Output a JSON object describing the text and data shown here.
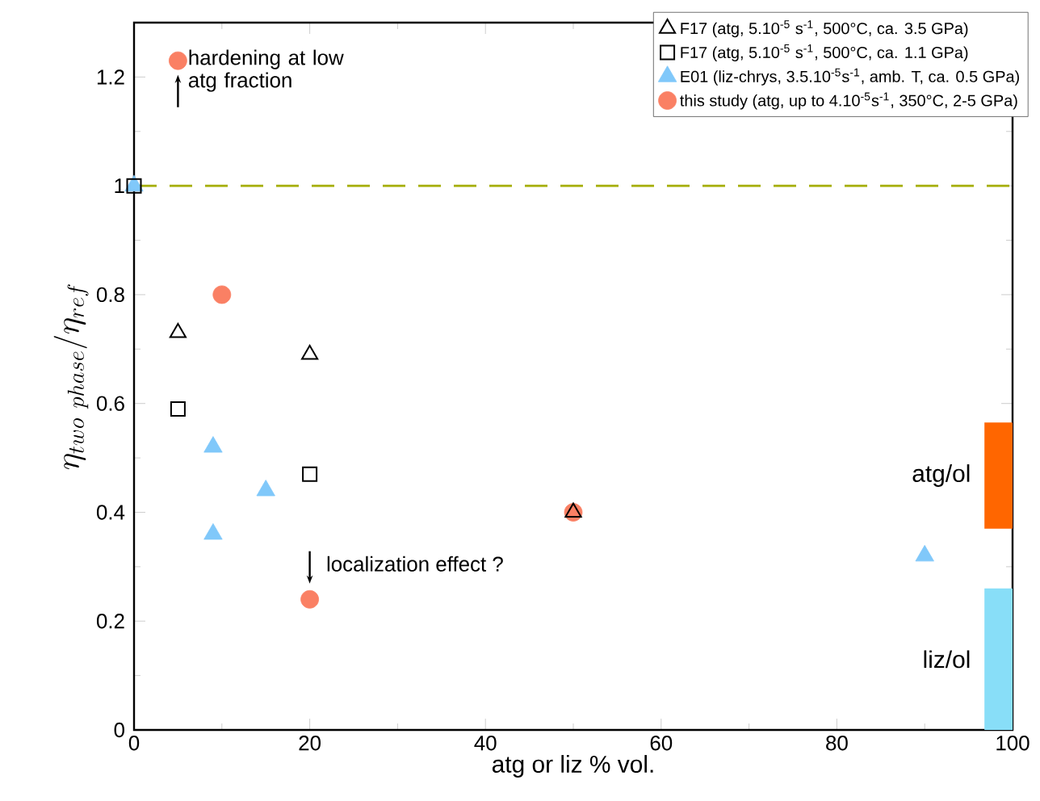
{
  "chart_data": {
    "type": "scatter",
    "xlabel": "atg or liz % vol.",
    "ylabel": "\\eta_{two\\ phase}/\\eta_{ref}",
    "xlim": [
      0,
      100
    ],
    "ylim": [
      0,
      1.3
    ],
    "xticks": [
      0,
      20,
      40,
      60,
      80,
      100
    ],
    "yticks": [
      0,
      0.2,
      0.4,
      0.6,
      0.8,
      1,
      1.2
    ],
    "legend": "top right",
    "series": [
      {
        "name": "F17 (atg, 5.10$^{-5}$ s$^{-1}$, 500°C, ca. 3.5 GPa)",
        "marker": "triangle",
        "color": "#000000",
        "x": [
          5,
          20,
          50
        ],
        "values": [
          0.73,
          0.69,
          0.4
        ]
      },
      {
        "name": "F17 (atg, 5.10$^{-5}$ s$^{-1}$, 500°C, ca. 1.1 GPa)",
        "marker": "square",
        "color": "#000000",
        "x": [
          0,
          5,
          20
        ],
        "values": [
          1,
          0.59,
          0.47
        ]
      },
      {
        "name": "E01 (liz-chrys, 3.5.10$^{-5}$s$^{-1}$, amb. T, ca. 0.5 GPa)",
        "marker": "triangle",
        "color": "#80c8fa",
        "x": [
          0,
          9,
          9,
          15,
          90
        ],
        "values": [
          1,
          0.52,
          0.36,
          0.44,
          0.32
        ]
      },
      {
        "name": "this study (atg, up to 4.10$^{-5}$s$^{-1}$, 350°C, 2-5 GPa)",
        "marker": "circle",
        "color": "#fa8064",
        "x": [
          5,
          10,
          20,
          50
        ],
        "values": [
          1.23,
          0.8,
          0.24,
          0.4
        ]
      },
      {
        "name": "atg/ol",
        "type": "bar",
        "color": "#ff6600",
        "x": [
          98.4
        ],
        "base": [
          0.37
        ],
        "values": [
          0.195
        ]
      },
      {
        "name": "liz/ol",
        "type": "bar",
        "color": "#88def8",
        "x": [
          98.4
        ],
        "base": [
          0
        ],
        "values": [
          0.26
        ]
      }
    ],
    "ref_lines": [
      {
        "axis": "y",
        "value": 1,
        "color": "#a5ae00",
        "line_style": "dashed"
      }
    ],
    "annotations": [
      {
        "text": "hardening at low atg fraction",
        "x": 5,
        "y": 1.23
      },
      {
        "text": "localization effect ?",
        "x": 20,
        "y": 0.24
      }
    ]
  }
}
